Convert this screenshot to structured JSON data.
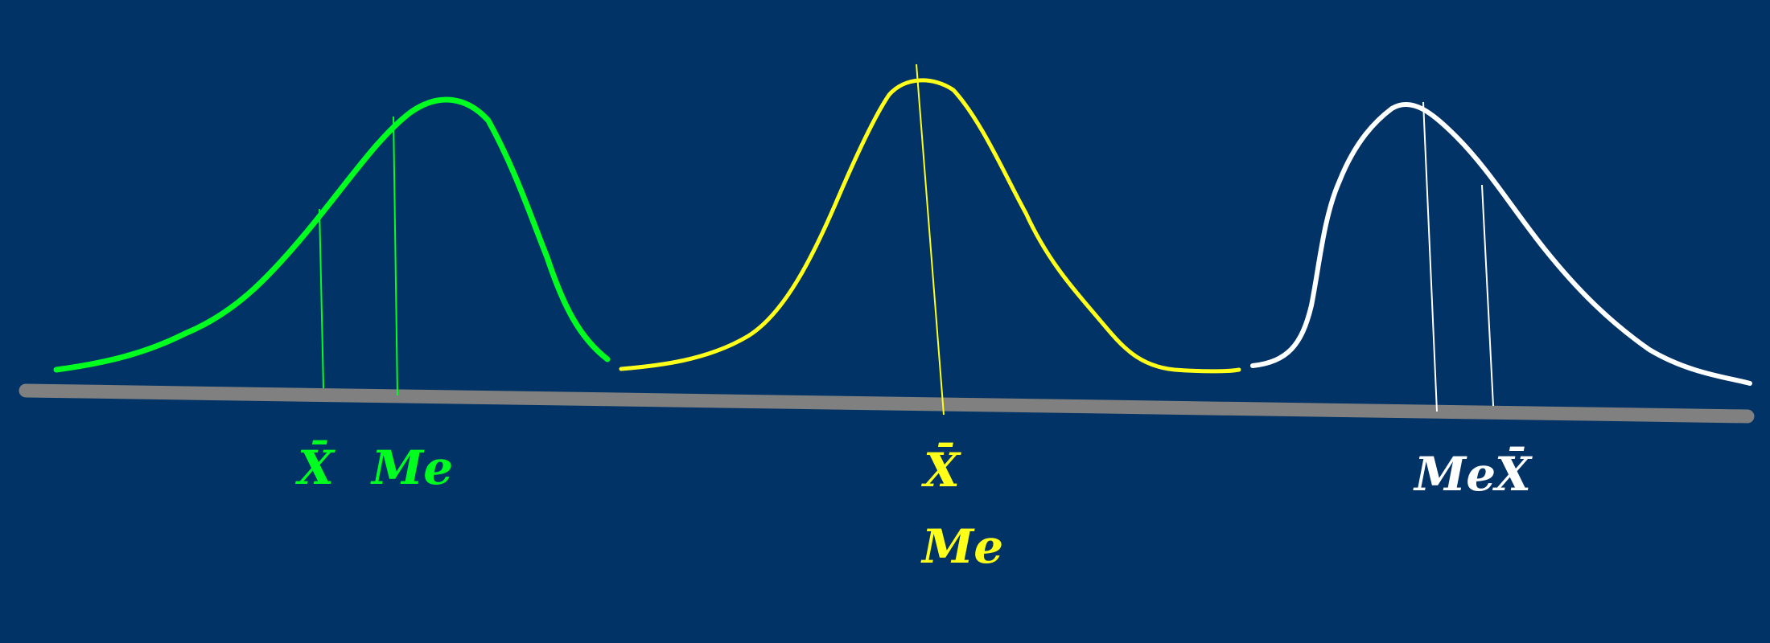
{
  "colors": {
    "background": "#013366",
    "axis": "#808080",
    "left_curve": "#00ff1f",
    "middle_curve": "#ffff1a",
    "right_curve": "#ffffff"
  },
  "labels": {
    "left_mean": "X̄",
    "left_median": "Me",
    "middle_mean": "X̄",
    "middle_median": "Me",
    "right_median": "Me",
    "right_mean": "X̄"
  }
}
